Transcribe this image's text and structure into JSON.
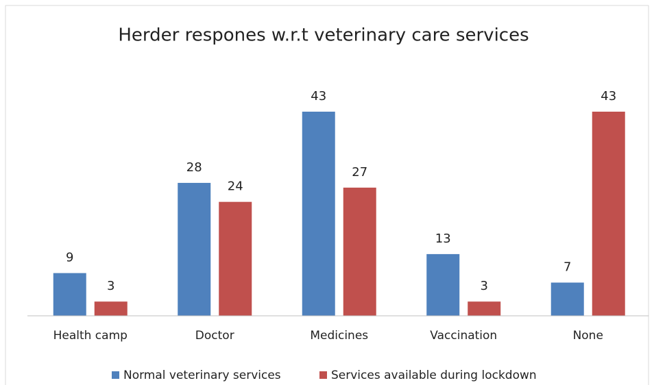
{
  "chart_data": {
    "type": "bar",
    "title": "Herder respones w.r.t veterinary care services",
    "categories": [
      "Health camp",
      "Doctor",
      "Medicines",
      "Vaccination",
      "None"
    ],
    "series": [
      {
        "name": "Normal veterinary services",
        "color": "#4f81bd",
        "values": [
          9,
          28,
          43,
          13,
          7
        ]
      },
      {
        "name": "Services available during lockdown",
        "color": "#c0504d",
        "values": [
          3,
          24,
          27,
          3,
          43
        ]
      }
    ],
    "legend": "bottom"
  }
}
